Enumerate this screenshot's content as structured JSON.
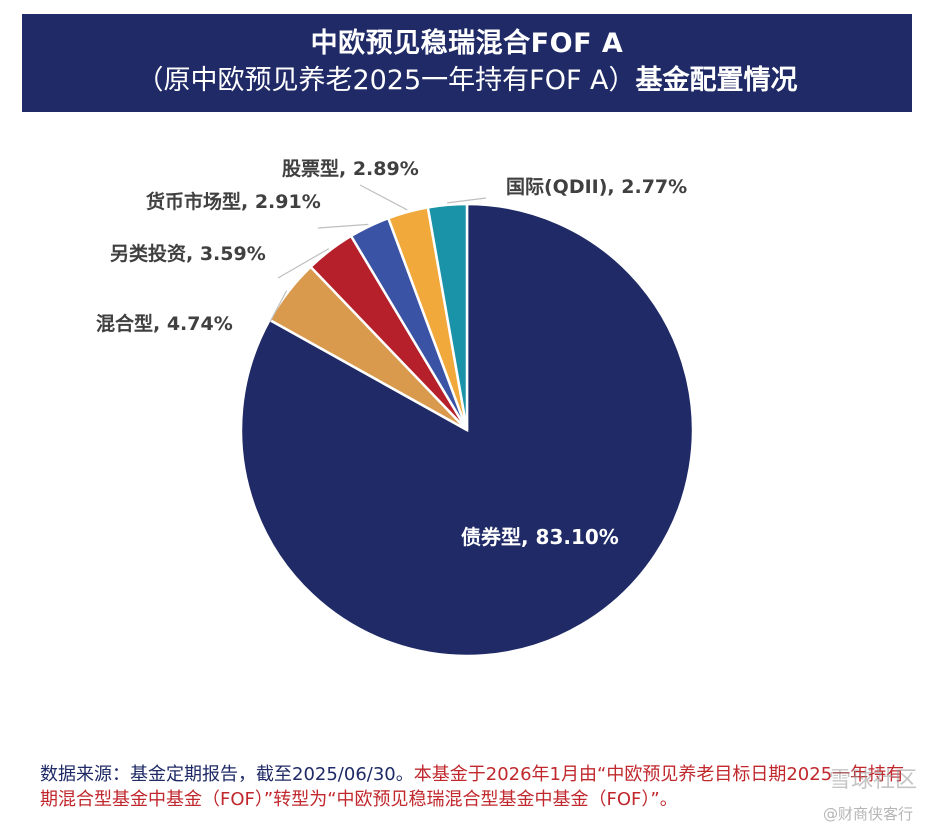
{
  "header": {
    "title_line1": "中欧预见稳瑞混合FOF A",
    "title_line2_prefix": "（原中欧预见养老2025一年持有FOF A）",
    "title_line2_bold": "基金配置情况"
  },
  "chart_data": {
    "type": "pie",
    "start_angle_deg": 0,
    "direction": "clockwise",
    "slices": [
      {
        "label": "债券型",
        "value": 83.1,
        "display": "债券型, 83.10%",
        "color": "#1f2a66",
        "label_pos": "inside"
      },
      {
        "label": "混合型",
        "value": 4.74,
        "display": "混合型, 4.74%",
        "color": "#d99a4e",
        "label_pos": "outside"
      },
      {
        "label": "另类投资",
        "value": 3.59,
        "display": "另类投资, 3.59%",
        "color": "#b5202a",
        "label_pos": "outside"
      },
      {
        "label": "货币市场型",
        "value": 2.91,
        "display": "货币市场型, 2.91%",
        "color": "#3a53a4",
        "label_pos": "outside"
      },
      {
        "label": "股票型",
        "value": 2.89,
        "display": "股票型, 2.89%",
        "color": "#f2a93b",
        "label_pos": "outside"
      },
      {
        "label": "国际(QDII)",
        "value": 2.77,
        "display": "国际(QDII), 2.77%",
        "color": "#1a93a8",
        "label_pos": "outside"
      }
    ]
  },
  "footer": {
    "source_text": "数据来源：基金定期报告，截至2025/06/30。",
    "note_text": "本基金于2026年1月由“中欧预见养老目标日期2025一年持有期混合型基金中基金（FOF）”转型为“中欧预见稳瑞混合型基金中基金（FOF）”。"
  },
  "watermark": {
    "text": "雪球社区",
    "sub_text": "@财商侠客行"
  }
}
